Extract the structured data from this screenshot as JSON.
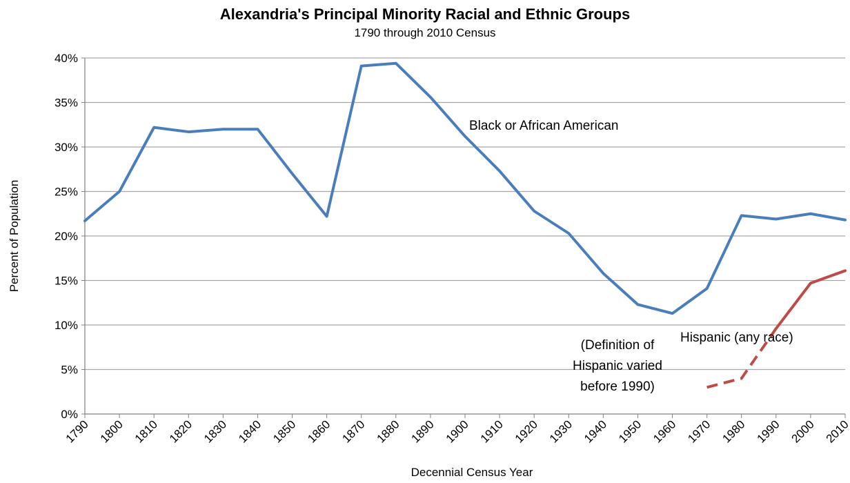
{
  "chart_data": {
    "type": "line",
    "title": "Alexandria's Principal Minority Racial and Ethnic Groups",
    "subtitle": "1790 through 2010 Census",
    "xlabel": "Decennial Census Year",
    "ylabel": "Percent of Population",
    "ylim": [
      0,
      40
    ],
    "yticks": [
      "0%",
      "5%",
      "10%",
      "15%",
      "20%",
      "25%",
      "30%",
      "35%",
      "40%"
    ],
    "categories": [
      "1790",
      "1800",
      "1810",
      "1820",
      "1830",
      "1840",
      "1850",
      "1860",
      "1870",
      "1880",
      "1890",
      "1900",
      "1910",
      "1920",
      "1930",
      "1940",
      "1950",
      "1960",
      "1970",
      "1980",
      "1990",
      "2000",
      "2010"
    ],
    "grid": true,
    "series": [
      {
        "name": "Black or African American",
        "color": "#4a7ebb",
        "values": [
          21.7,
          25.0,
          32.2,
          31.7,
          32.0,
          32.0,
          27.0,
          22.2,
          39.1,
          39.4,
          35.6,
          31.2,
          27.3,
          22.8,
          20.3,
          15.8,
          12.3,
          11.3,
          14.1,
          22.3,
          21.9,
          22.5,
          21.8
        ]
      },
      {
        "name": "Hispanic (any race)",
        "color": "#be4b48",
        "values": [
          null,
          null,
          null,
          null,
          null,
          null,
          null,
          null,
          null,
          null,
          null,
          null,
          null,
          null,
          null,
          null,
          null,
          null,
          3.0,
          4.0,
          9.6,
          14.7,
          16.1
        ],
        "dashed_before": "1990"
      }
    ],
    "annotations": [
      {
        "id": "black-label",
        "text": "Black or African American"
      },
      {
        "id": "hispanic-label",
        "text": "Hispanic (any race)"
      },
      {
        "id": "definition-note",
        "lines": [
          "(Definition of",
          "Hispanic  varied",
          "before 1990)"
        ]
      }
    ]
  }
}
